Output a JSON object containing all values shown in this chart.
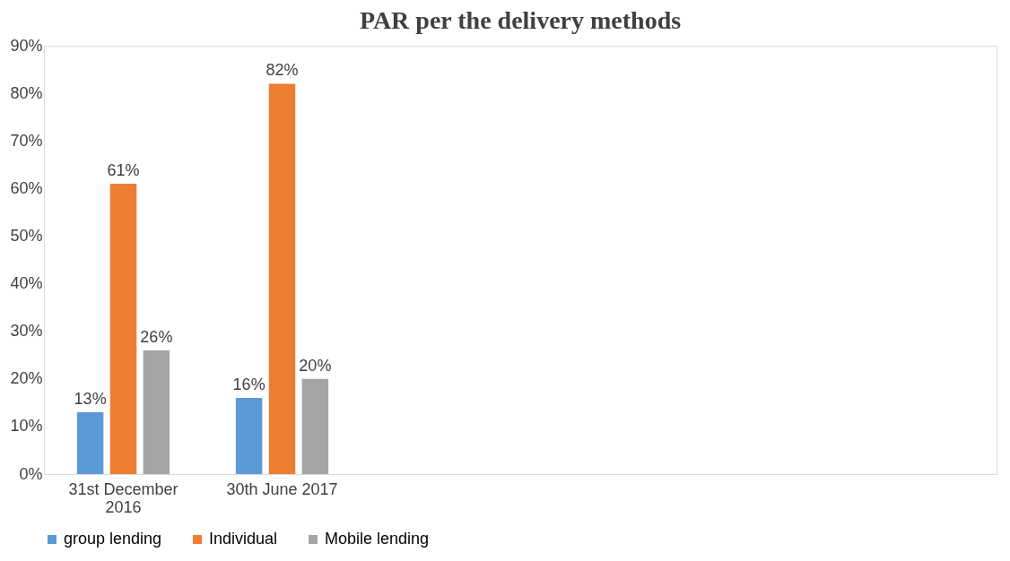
{
  "chart_data": {
    "type": "bar",
    "title": "PAR per the delivery methods",
    "categories": [
      "31st December 2016",
      "30th June 2017",
      null,
      null,
      null,
      null
    ],
    "series": [
      {
        "name": "group lending",
        "color": "#5b9bd5",
        "values": [
          13,
          16,
          null,
          null,
          null,
          null
        ],
        "value_labels": [
          "13%",
          "16%",
          null,
          null,
          null,
          null
        ]
      },
      {
        "name": "Individual",
        "color": "#ed7d31",
        "values": [
          61,
          82,
          null,
          null,
          null,
          null
        ],
        "value_labels": [
          "61%",
          "82%",
          null,
          null,
          null,
          null
        ]
      },
      {
        "name": "Mobile  lending",
        "color": "#a5a5a5",
        "values": [
          26,
          20,
          null,
          null,
          null,
          null
        ],
        "value_labels": [
          "26%",
          "20%",
          null,
          null,
          null,
          null
        ]
      }
    ],
    "ylim": [
      0,
      90
    ],
    "yticks": [
      {
        "value": 0,
        "label": "0%"
      },
      {
        "value": 10,
        "label": "10%"
      },
      {
        "value": 20,
        "label": "20%"
      },
      {
        "value": 30,
        "label": "30%"
      },
      {
        "value": 40,
        "label": "40%"
      },
      {
        "value": 50,
        "label": "50%"
      },
      {
        "value": 60,
        "label": "60%"
      },
      {
        "value": 70,
        "label": "70%"
      },
      {
        "value": 80,
        "label": "80%"
      },
      {
        "value": 90,
        "label": "90%"
      }
    ],
    "grid": false,
    "legend": "bottom"
  }
}
